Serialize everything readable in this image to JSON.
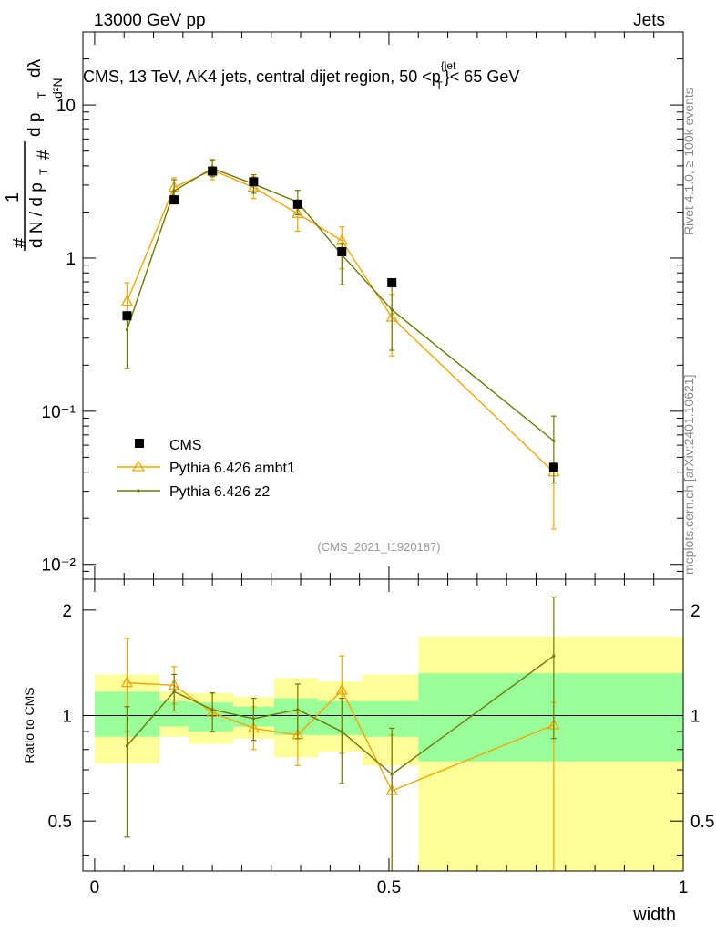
{
  "header": {
    "left": "13000 GeV pp",
    "right": "Jets"
  },
  "side_labels": {
    "rivet": "Rivet 4.1.0, ≥ 100k events",
    "mcplots": "mcplots.cern.ch [arXiv:2401.10621]"
  },
  "colors": {
    "cms": "#000000",
    "ambt1": "#f5a500",
    "z2": "#6b7a00",
    "band_green": "#99ff99",
    "band_yellow": "#ffff99"
  },
  "chart_data": [
    {
      "type": "scatter",
      "panel": "main",
      "title": "CMS, 13 TeV, AK4 jets, central dijet region, 50 <p_T^{jet}< 65 GeV",
      "title_parts": {
        "prefix": "CMS, 13 TeV, AK4 jets, central dijet region, 50 <p",
        "sup": "{jet",
        "sub": "T",
        "suffix": "}< 65 GeV"
      },
      "ylabel": "1/dN/dp_T # d²N/dp_T dλ",
      "ylabel_parts": {
        "hash": "#",
        "one": "1",
        "den": "d N / d p",
        "T": "T",
        "d2N": "d²N",
        "dpT": "d p",
        "dlam": "dλ"
      },
      "yscale": "log",
      "ylim": [
        0.008,
        30
      ],
      "xlim": [
        -0.02,
        1.0
      ],
      "y_ticks": [
        {
          "v": 10,
          "label": "10"
        },
        {
          "v": 1,
          "label": "1"
        },
        {
          "v": 0.1,
          "label": "10⁻¹"
        },
        {
          "v": 0.01,
          "label": "10⁻²"
        }
      ],
      "watermark": "(CMS_2021_I1920187)",
      "legend": [
        {
          "name": "CMS",
          "marker": "square"
        },
        {
          "name": "Pythia 6.426 ambt1",
          "marker": "triangle"
        },
        {
          "name": "Pythia 6.426 z2",
          "marker": "dot"
        }
      ],
      "series": [
        {
          "name": "CMS",
          "x": [
            0.055,
            0.135,
            0.2,
            0.27,
            0.345,
            0.42,
            0.505,
            0.78
          ],
          "y": [
            0.42,
            2.4,
            3.7,
            3.15,
            2.25,
            1.1,
            0.69,
            0.043
          ],
          "xerr_lo": [
            0.055,
            0.025,
            0.025,
            0.035,
            0.04,
            0.035,
            0.05,
            0.23
          ],
          "xerr_hi": [
            0.025,
            0.025,
            0.035,
            0.04,
            0.035,
            0.05,
            0.045,
            0.22
          ]
        },
        {
          "name": "Pythia 6.426 ambt1",
          "x": [
            0.055,
            0.135,
            0.2,
            0.27,
            0.345,
            0.42,
            0.505,
            0.78
          ],
          "y": [
            0.52,
            2.9,
            3.75,
            2.9,
            1.95,
            1.3,
            0.41,
            0.04
          ],
          "yerr_lo": [
            0.12,
            0.35,
            0.5,
            0.45,
            0.45,
            0.45,
            0.18,
            0.023
          ],
          "yerr_hi": [
            0.17,
            0.45,
            0.6,
            0.5,
            0.45,
            0.3,
            0.17,
            0.006
          ]
        },
        {
          "name": "Pythia 6.426 z2",
          "x": [
            0.055,
            0.135,
            0.2,
            0.27,
            0.345,
            0.42,
            0.505,
            0.78
          ],
          "y": [
            0.34,
            2.75,
            3.85,
            3.05,
            2.32,
            1.05,
            0.46,
            0.064
          ],
          "yerr_lo": [
            0.15,
            0.35,
            0.45,
            0.4,
            0.4,
            0.38,
            0.21,
            0.03
          ],
          "yerr_hi": [
            0.1,
            0.5,
            0.55,
            0.45,
            0.45,
            0.2,
            0.2,
            0.029
          ]
        }
      ]
    },
    {
      "type": "scatter",
      "panel": "ratio",
      "ylabel": "Ratio to CMS",
      "xlabel": "width",
      "yscale": "log",
      "ylim": [
        0.36,
        2.45
      ],
      "xlim": [
        -0.02,
        1.0
      ],
      "x_ticks": [
        {
          "v": 0,
          "label": "0"
        },
        {
          "v": 0.5,
          "label": "0.5"
        },
        {
          "v": 1,
          "label": "1"
        }
      ],
      "y_ticks": [
        {
          "v": 2,
          "label": "2"
        },
        {
          "v": 1,
          "label": "1"
        },
        {
          "v": 0.5,
          "label": "0.5"
        }
      ],
      "bands": [
        {
          "x0": 0.0,
          "x1": 0.06,
          "green": [
            0.87,
            1.17
          ],
          "yellow": [
            0.73,
            1.31
          ]
        },
        {
          "x0": 0.06,
          "x1": 0.11,
          "green": [
            0.87,
            1.17
          ],
          "yellow": [
            0.73,
            1.31
          ]
        },
        {
          "x0": 0.11,
          "x1": 0.16,
          "green": [
            0.93,
            1.1
          ],
          "yellow": [
            0.87,
            1.17
          ]
        },
        {
          "x0": 0.16,
          "x1": 0.235,
          "green": [
            0.9,
            1.09
          ],
          "yellow": [
            0.83,
            1.16
          ]
        },
        {
          "x0": 0.235,
          "x1": 0.305,
          "green": [
            0.93,
            1.06
          ],
          "yellow": [
            0.86,
            1.13
          ]
        },
        {
          "x0": 0.305,
          "x1": 0.38,
          "green": [
            0.88,
            1.12
          ],
          "yellow": [
            0.76,
            1.28
          ]
        },
        {
          "x0": 0.38,
          "x1": 0.455,
          "green": [
            0.88,
            1.1
          ],
          "yellow": [
            0.79,
            1.25
          ]
        },
        {
          "x0": 0.455,
          "x1": 0.55,
          "green": [
            0.87,
            1.1
          ],
          "yellow": [
            0.72,
            1.31
          ]
        },
        {
          "x0": 0.55,
          "x1": 1.0,
          "green": [
            0.74,
            1.32
          ],
          "yellow": [
            0.35,
            1.68
          ]
        }
      ],
      "series": [
        {
          "name": "Pythia 6.426 ambt1",
          "x": [
            0.055,
            0.135,
            0.2,
            0.27,
            0.345,
            0.42,
            0.505,
            0.78
          ],
          "y": [
            1.24,
            1.22,
            1.02,
            0.92,
            0.88,
            1.18,
            0.61,
            0.94
          ],
          "yerr_lo": [
            0.34,
            0.14,
            0.12,
            0.12,
            0.16,
            0.4,
            0.25,
            0.64
          ],
          "yerr_hi": [
            0.42,
            0.16,
            0.14,
            0.14,
            0.14,
            0.3,
            0.27,
            0.15
          ]
        },
        {
          "name": "Pythia 6.426 z2",
          "x": [
            0.055,
            0.135,
            0.2,
            0.27,
            0.345,
            0.42,
            0.505,
            0.78
          ],
          "y": [
            0.82,
            1.17,
            1.04,
            0.98,
            1.04,
            0.9,
            0.68,
            1.48
          ],
          "yerr_lo": [
            0.37,
            0.14,
            0.14,
            0.13,
            0.18,
            0.26,
            0.33,
            0.62
          ],
          "yerr_hi": [
            0.24,
            0.14,
            0.12,
            0.14,
            0.19,
            0.22,
            0.24,
            0.7
          ]
        }
      ]
    }
  ]
}
